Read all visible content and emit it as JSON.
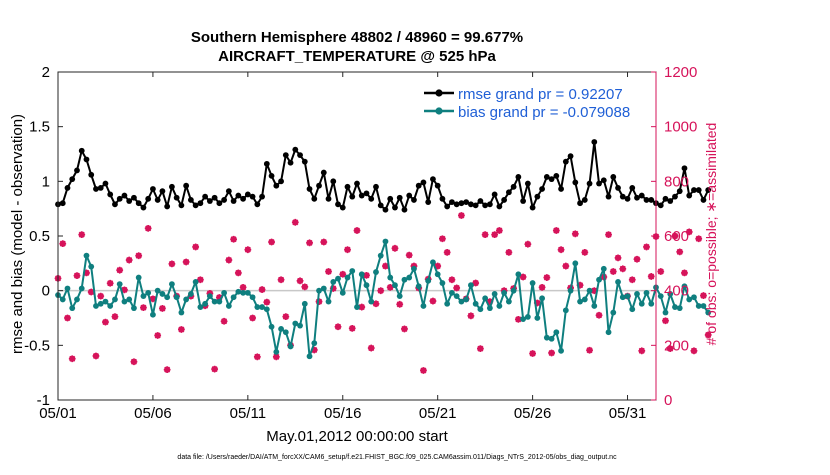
{
  "chart_data": {
    "type": "line",
    "title": "Southern Hemisphere 48802 / 48960 = 99.677%",
    "subtitle": "AIRCRAFT_TEMPERATURE @ 525 hPa",
    "xlabel": "May.01,2012 00:00:00 start",
    "ylabel_left": "rmse and bias (model - observation)",
    "ylabel_right": "# of obs: o=possible; ∗=assimilated",
    "footnote": "data file: /Users/raeder/DAI/ATM_forcXX/CAM6_setup/f.e21.FHIST_BGC.f09_025.CAM6assim.011/Diags_NTrS_2012-05/obs_diag_output.nc",
    "xlim": [
      0,
      31.5
    ],
    "ylim_left": [
      -1,
      2
    ],
    "ylim_right": [
      0,
      1200
    ],
    "x_ticks": [
      {
        "value": 0,
        "label": "05/01"
      },
      {
        "value": 5,
        "label": "05/06"
      },
      {
        "value": 10,
        "label": "05/11"
      },
      {
        "value": 15,
        "label": "05/16"
      },
      {
        "value": 20,
        "label": "05/21"
      },
      {
        "value": 25,
        "label": "05/26"
      },
      {
        "value": 30,
        "label": "05/31"
      }
    ],
    "y_ticks_left": [
      -1,
      -0.5,
      0,
      0.5,
      1,
      1.5,
      2
    ],
    "y_ticks_left_labels": [
      "-1",
      "-0.5",
      "0",
      "0.5",
      "1",
      "1.5",
      "2"
    ],
    "y_ticks_right": [
      0,
      200,
      400,
      600,
      800,
      1000,
      1200
    ],
    "y_ticks_right_labels": [
      "0",
      "200",
      "400",
      "600",
      "800",
      "1000",
      "1200"
    ],
    "zero_line": 0,
    "x_step_days": 0.25,
    "colors": {
      "rmse": "#000000",
      "bias": "#0f7f7f",
      "obs": "#d6135a",
      "zero": "#c8c8c8",
      "legend_text": "#1f5fd6",
      "right_axis": "#d6135a"
    },
    "legend": {
      "placement": "top-right",
      "entries": [
        {
          "name": "rmse grand pr = 0.92207",
          "series": "rmse"
        },
        {
          "name": "bias grand pr = -0.079088",
          "series": "bias"
        }
      ]
    },
    "series": [
      {
        "name": "rmse",
        "axis": "left",
        "values": [
          0.79,
          0.8,
          0.94,
          1.02,
          1.1,
          1.28,
          1.2,
          1.06,
          0.93,
          0.94,
          0.98,
          0.88,
          0.79,
          0.84,
          0.87,
          0.82,
          0.85,
          0.8,
          0.76,
          0.84,
          0.93,
          0.83,
          0.91,
          0.77,
          0.95,
          0.85,
          0.78,
          0.96,
          0.83,
          0.78,
          0.8,
          0.86,
          0.82,
          0.85,
          0.8,
          0.83,
          0.91,
          0.82,
          0.87,
          0.84,
          0.88,
          0.86,
          0.79,
          0.86,
          1.16,
          1.05,
          0.96,
          1.0,
          1.24,
          1.17,
          1.29,
          1.24,
          1.18,
          0.93,
          0.84,
          0.96,
          1.08,
          0.84,
          1.0,
          0.79,
          0.76,
          0.95,
          0.86,
          0.98,
          0.87,
          0.89,
          0.84,
          0.95,
          0.78,
          0.74,
          0.84,
          0.76,
          0.85,
          0.74,
          0.87,
          0.83,
          0.96,
          0.99,
          0.81,
          1.02,
          0.96,
          0.84,
          0.77,
          0.81,
          0.79,
          0.8,
          0.81,
          0.79,
          0.78,
          0.82,
          0.78,
          0.79,
          0.88,
          0.77,
          0.83,
          0.9,
          0.95,
          1.04,
          0.82,
          0.98,
          0.76,
          0.86,
          0.93,
          1.04,
          1.02,
          1.05,
          0.93,
          1.18,
          1.23,
          0.99,
          0.8,
          0.83,
          0.98,
          1.36,
          0.98,
          1.01,
          0.86,
          1.04,
          0.94,
          0.86,
          0.84,
          0.94,
          0.85,
          0.87,
          0.83,
          0.83,
          0.8,
          0.78,
          0.84,
          0.82,
          0.86,
          0.91,
          1.12,
          0.87,
          0.92,
          0.92,
          0.83,
          0.92
        ]
      },
      {
        "name": "bias",
        "axis": "left",
        "values": [
          -0.04,
          -0.08,
          0.02,
          -0.16,
          -0.08,
          0.02,
          0.32,
          0.22,
          -0.14,
          -0.12,
          -0.1,
          -0.14,
          -0.08,
          0.06,
          -0.1,
          -0.08,
          -0.16,
          0.12,
          -0.05,
          -0.02,
          -0.22,
          0.0,
          -0.03,
          -0.06,
          0.06,
          -0.06,
          -0.2,
          -0.08,
          -0.03,
          0.08,
          -0.15,
          -0.12,
          -0.05,
          -0.1,
          -0.1,
          -0.02,
          -0.14,
          -0.06,
          -0.01,
          -0.02,
          -0.02,
          -0.06,
          -0.15,
          -0.15,
          -0.17,
          -0.33,
          -0.56,
          -0.35,
          -0.38,
          -0.51,
          -0.3,
          -0.32,
          -0.12,
          -0.6,
          -0.48,
          0.0,
          0.02,
          -0.1,
          0.08,
          0.11,
          -0.02,
          0.12,
          0.18,
          -0.15,
          0.15,
          0.05,
          -0.1,
          0.17,
          0.32,
          0.45,
          0.12,
          0.05,
          -0.05,
          0.1,
          0.12,
          0.2,
          0.04,
          -0.14,
          0.09,
          0.26,
          0.15,
          0.07,
          -0.12,
          -0.02,
          -0.05,
          -0.1,
          -0.08,
          0.05,
          -0.12,
          -0.17,
          -0.07,
          -0.16,
          -0.03,
          -0.14,
          -0.02,
          -0.1,
          0.0,
          0.15,
          -0.26,
          -0.24,
          0.07,
          -0.25,
          -0.07,
          -0.43,
          -0.44,
          -0.38,
          -0.55,
          -0.18,
          0.0,
          0.25,
          -0.1,
          -0.08,
          0.0,
          -0.14,
          0.1,
          0.2,
          -0.38,
          -0.2,
          0.08,
          -0.06,
          -0.05,
          -0.17,
          -0.03,
          -0.12,
          -0.02,
          -0.12,
          0.03,
          -0.05,
          -0.2,
          -0.03,
          -0.15,
          -0.16,
          0.04,
          -0.08,
          -0.06,
          -0.14,
          -0.14,
          -0.2
        ]
      },
      {
        "name": "obs_assimilated",
        "axis": "right",
        "values": [
          445,
          572,
          300,
          151,
          455,
          605,
          465,
          395,
          161,
          380,
          285,
          427,
          305,
          475,
          403,
          512,
          140,
          528,
          338,
          628,
          370,
          236,
          335,
          111,
          498,
          380,
          258,
          505,
          380,
          560,
          440,
          345,
          390,
          113,
          375,
          288,
          512,
          588,
          465,
          412,
          550,
          300,
          158,
          404,
          358,
          578,
          158,
          440,
          305,
          200,
          650,
          436,
          414,
          575,
          183,
          360,
          578,
          470,
          408,
          268,
          460,
          550,
          262,
          620,
          340,
          456,
          190,
          352,
          400,
          490,
          412,
          555,
          350,
          260,
          530,
          490,
          410,
          108,
          442,
          362,
          490,
          590,
          540,
          440,
          410,
          675,
          370,
          308,
          428,
          188,
          605,
          360,
          605,
          620,
          400,
          540,
          408,
          295,
          450,
          570,
          170,
          355,
          412,
          448,
          172,
          620,
          550,
          490,
          410,
          608,
          420,
          540,
          182,
          400,
          310,
          450,
          605,
          470,
          520,
          480,
          380,
          440,
          515,
          180,
          560,
          452,
          598,
          470,
          290,
          188,
          600,
          542,
          465,
          615,
          180,
          590,
          382,
          238
        ]
      },
      {
        "name": "obs_possible",
        "axis": "right",
        "values": [
          445,
          572,
          300,
          151,
          455,
          605,
          465,
          395,
          161,
          380,
          285,
          427,
          305,
          475,
          403,
          512,
          140,
          528,
          338,
          628,
          370,
          236,
          335,
          111,
          498,
          380,
          258,
          505,
          380,
          560,
          440,
          345,
          390,
          113,
          375,
          288,
          512,
          588,
          465,
          412,
          550,
          300,
          158,
          404,
          358,
          578,
          158,
          440,
          305,
          200,
          650,
          436,
          414,
          575,
          183,
          360,
          578,
          470,
          408,
          268,
          460,
          550,
          262,
          620,
          340,
          456,
          190,
          352,
          400,
          490,
          412,
          555,
          350,
          260,
          530,
          490,
          410,
          108,
          442,
          362,
          490,
          590,
          540,
          440,
          410,
          675,
          370,
          308,
          428,
          188,
          605,
          360,
          605,
          620,
          400,
          540,
          408,
          295,
          450,
          570,
          170,
          355,
          412,
          448,
          172,
          620,
          550,
          490,
          410,
          608,
          420,
          540,
          182,
          400,
          310,
          450,
          605,
          470,
          520,
          480,
          380,
          440,
          515,
          180,
          560,
          452,
          598,
          470,
          290,
          188,
          600,
          542,
          465,
          615,
          180,
          590,
          382,
          238
        ]
      }
    ]
  }
}
